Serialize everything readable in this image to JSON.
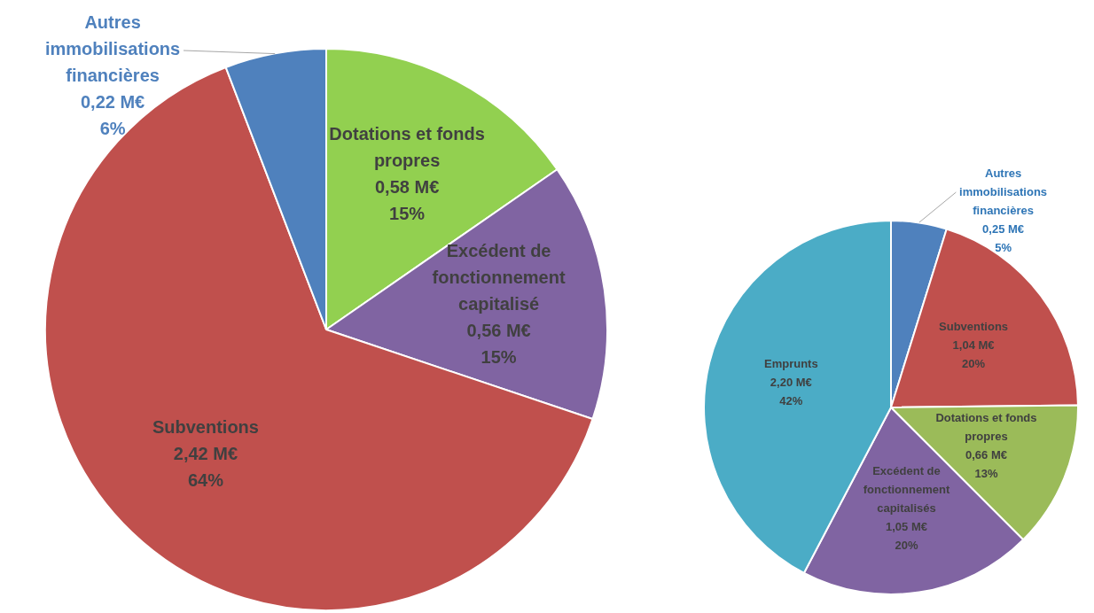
{
  "chart_data": [
    {
      "type": "pie",
      "categories": [
        "Dotations et fonds propres",
        "Excédent de fonctionnement capitalisé",
        "Subventions",
        "Autres immobilisations financières"
      ],
      "values": [
        0.58,
        0.56,
        2.42,
        0.22
      ],
      "colors": [
        "#92d050",
        "#8064a2",
        "#c0504d",
        "#4f81bd"
      ],
      "value_labels": [
        "0,58 M€\n15%",
        "0,56 M€\n15%",
        "2,42 M€\n64%",
        "0,22 M€\n6%"
      ],
      "legend": false
    },
    {
      "type": "pie",
      "categories": [
        "Autres immobilisations financières",
        "Subventions",
        "Dotations et fonds propres",
        "Excédent de fonctionnement capitalisés",
        "Emprunts"
      ],
      "values": [
        0.25,
        1.04,
        0.66,
        1.05,
        2.2
      ],
      "colors": [
        "#4f81bd",
        "#c0504d",
        "#9bbb59",
        "#8064a2",
        "#4bacc6"
      ],
      "value_labels": [
        "0,25 M€\n5%",
        "1,04 M€\n20%",
        "0,66 M€\n13%",
        "1,05 M€\n20%",
        "2,20 M€\n42%"
      ],
      "legend": false
    }
  ]
}
